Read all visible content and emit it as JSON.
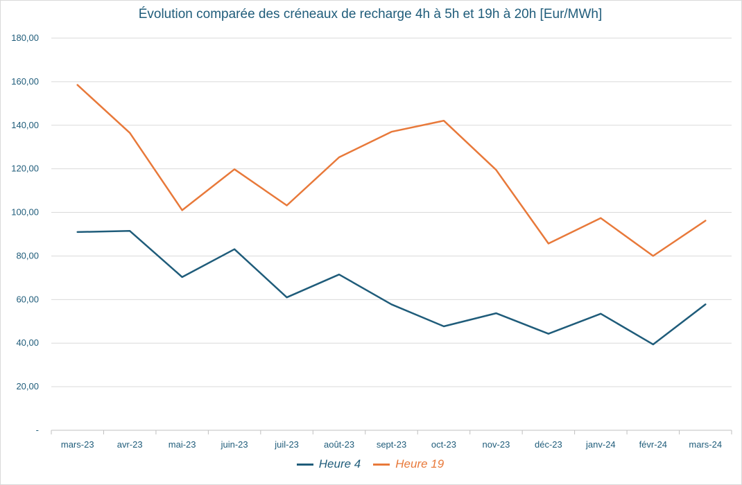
{
  "chart_data": {
    "type": "line",
    "title": "Évolution comparée des créneaux de recharge 4h à 5h et 19h à 20h [Eur/MWh]",
    "xlabel": "",
    "ylabel": "",
    "ylim": [
      0,
      180
    ],
    "yticks": [
      "-",
      "20,00",
      "40,00",
      "60,00",
      "80,00",
      "100,00",
      "120,00",
      "140,00",
      "160,00",
      "180,00"
    ],
    "categories": [
      "mars-23",
      "avr-23",
      "mai-23",
      "juin-23",
      "juil-23",
      "août-23",
      "sept-23",
      "oct-23",
      "nov-23",
      "déc-23",
      "janv-24",
      "févr-24",
      "mars-24"
    ],
    "series": [
      {
        "name": "Heure 4",
        "color": "#1f5c7a",
        "values": [
          91.0,
          91.5,
          70.3,
          83.1,
          61.0,
          71.5,
          57.8,
          47.7,
          53.7,
          44.3,
          53.5,
          39.4,
          57.8
        ]
      },
      {
        "name": "Heure 19",
        "color": "#e8793a",
        "values": [
          158.5,
          136.5,
          101.0,
          119.8,
          103.2,
          125.3,
          137.0,
          142.1,
          119.5,
          85.7,
          97.4,
          80.0,
          96.2
        ]
      }
    ],
    "grid": true,
    "legend_position": "bottom-center"
  }
}
